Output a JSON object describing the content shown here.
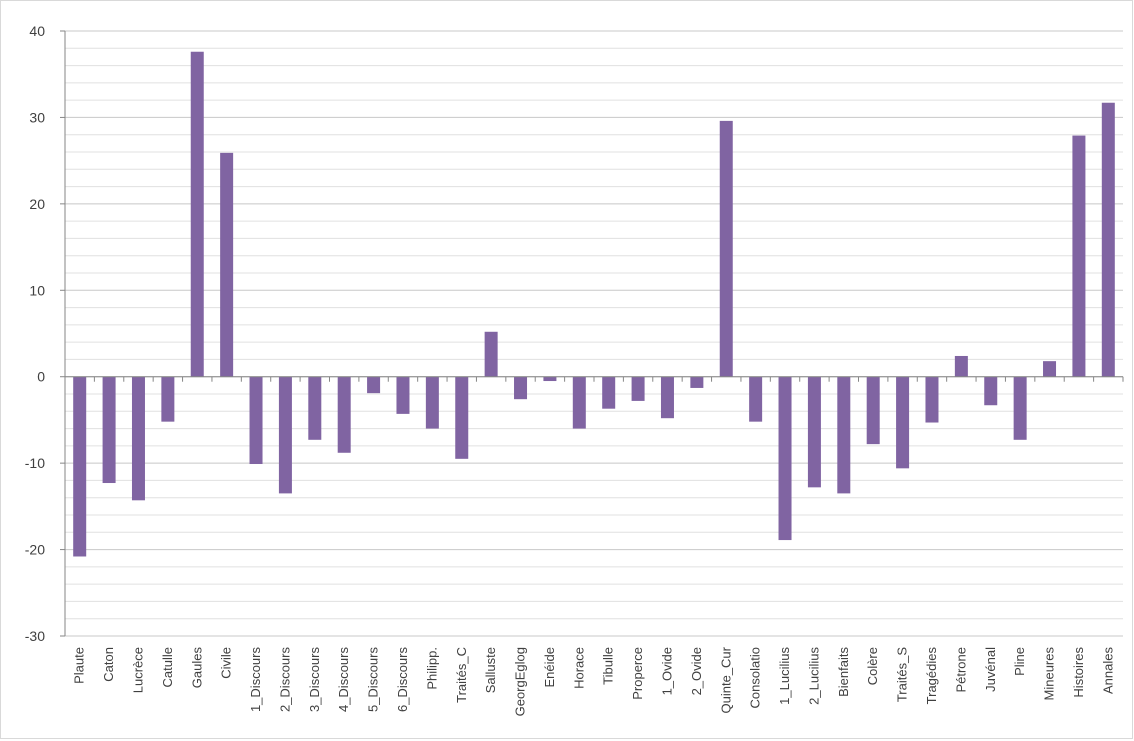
{
  "chart_data": {
    "type": "bar",
    "title": "",
    "xlabel": "",
    "ylabel": "",
    "ylim": [
      -30,
      40
    ],
    "yticks": [
      40,
      30,
      20,
      10,
      0,
      -10,
      -20,
      -30
    ],
    "minor_gridlines": true,
    "legend": "none",
    "bar_color": "#8064a2",
    "categories": [
      "Plaute",
      "Caton",
      "Lucrèce",
      "Catulle",
      "Gaules",
      "Civile",
      "1_Discours",
      "2_Discours",
      "3_Discours",
      "4_Discours",
      "5_Discours",
      "6_Discours",
      "Philipp.",
      "Traités_C",
      "Salluste",
      "GeorgEglog",
      "Enéide",
      "Horace",
      "Tibulle",
      "Properce",
      "1_Ovide",
      "2_Ovide",
      "Quinte_Cur",
      "Consolatio",
      "1_Lucilius",
      "2_Lucilius",
      "Bienfaits",
      "Colère",
      "Traités_S",
      "Tragédies",
      "Pétrone",
      "Juvénal",
      "Pline",
      "Mineures",
      "Histoires",
      "Annales"
    ],
    "values": [
      -20.8,
      -12.3,
      -14.3,
      -5.2,
      37.6,
      25.9,
      -10.1,
      -13.5,
      -7.3,
      -8.8,
      -1.9,
      -4.3,
      -6.0,
      -9.5,
      5.2,
      -2.6,
      -0.5,
      -6.0,
      -3.7,
      -2.8,
      -4.8,
      -1.3,
      29.6,
      -5.2,
      -18.9,
      -12.8,
      -13.5,
      -7.8,
      -10.6,
      -5.3,
      2.4,
      -3.3,
      -7.3,
      1.8,
      27.9,
      31.7
    ]
  }
}
